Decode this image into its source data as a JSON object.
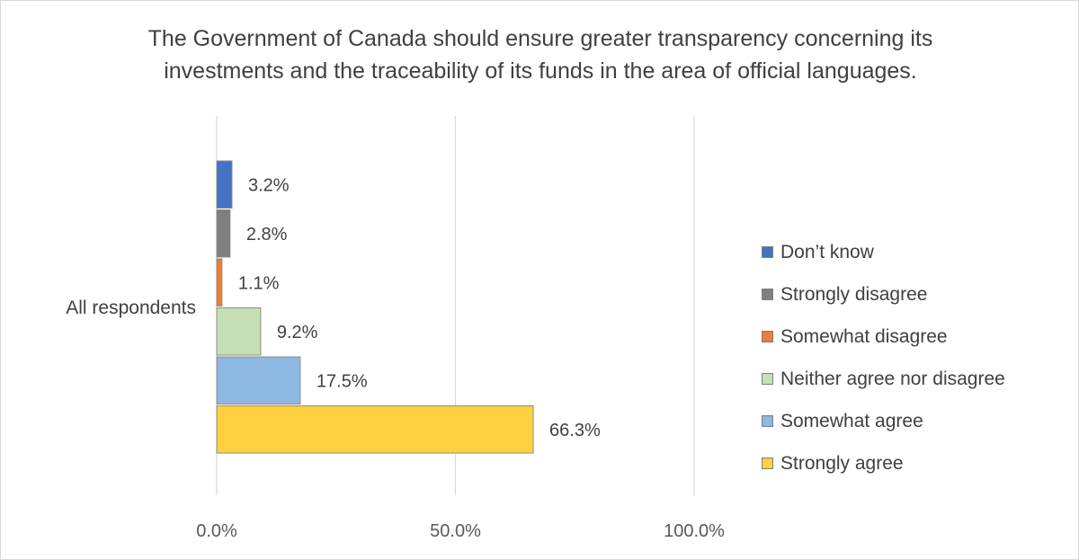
{
  "chart_data": {
    "type": "bar",
    "orientation": "horizontal",
    "title": "The Government of Canada should ensure greater transparency concerning its\ninvestments and the traceability of its funds in the area of official languages.",
    "categories": [
      "All respondents"
    ],
    "xlim": [
      0,
      100
    ],
    "x_ticks": [
      "0.0%",
      "50.0%",
      "100.0%"
    ],
    "grid": true,
    "legend_position": "right",
    "series": [
      {
        "name": "Don’t know",
        "values": [
          3.2
        ],
        "label": "3.2%",
        "color": "#4472c4"
      },
      {
        "name": "Strongly disagree",
        "values": [
          2.8
        ],
        "label": "2.8%",
        "color": "#7f7f7f"
      },
      {
        "name": "Somewhat disagree",
        "values": [
          1.1
        ],
        "label": "1.1%",
        "color": "#ed7d31"
      },
      {
        "name": "Neither agree nor disagree",
        "values": [
          9.2
        ],
        "label": "9.2%",
        "color": "#c5e0b4"
      },
      {
        "name": "Somewhat agree",
        "values": [
          17.5
        ],
        "label": "17.5%",
        "color": "#8cb7e0"
      },
      {
        "name": "Strongly agree",
        "values": [
          66.3
        ],
        "label": "66.3%",
        "color": "#ffd040"
      }
    ]
  }
}
